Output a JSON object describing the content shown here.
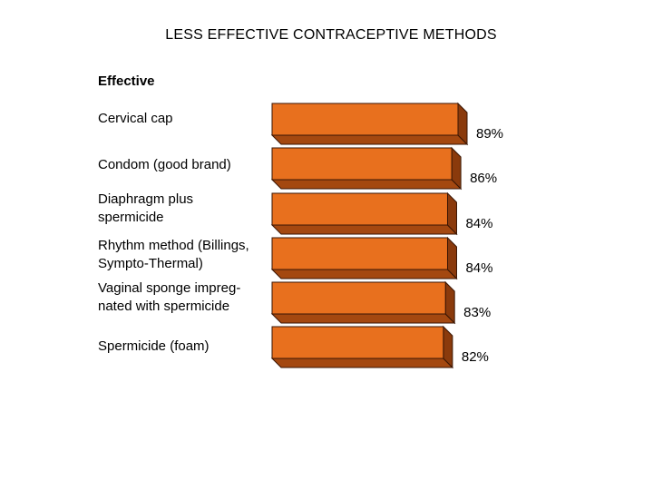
{
  "chart_data": {
    "type": "bar",
    "orientation": "horizontal",
    "title": "LESS EFFECTIVE CONTRACEPTIVE METHODS",
    "subtitle": "Effective",
    "categories": [
      "Cervical cap",
      "Condom (good brand)",
      "Diaphragm plus\nspermicide",
      "Rhythm method (Billings,\nSympto-Thermal)",
      "Vaginal sponge impreg-\nnated with spermicide",
      "Spermicide (foam)"
    ],
    "values": [
      89,
      86,
      84,
      84,
      83,
      82
    ],
    "value_labels": [
      "89%",
      "86%",
      "84%",
      "84%",
      "83%",
      "82%"
    ],
    "unit": "%",
    "bar_style": "3d",
    "colors": {
      "bar_front": "#e8701e",
      "bar_side": "#8a3a0c",
      "bar_bottom": "#a44810",
      "bar_outline": "#3a1604"
    }
  }
}
